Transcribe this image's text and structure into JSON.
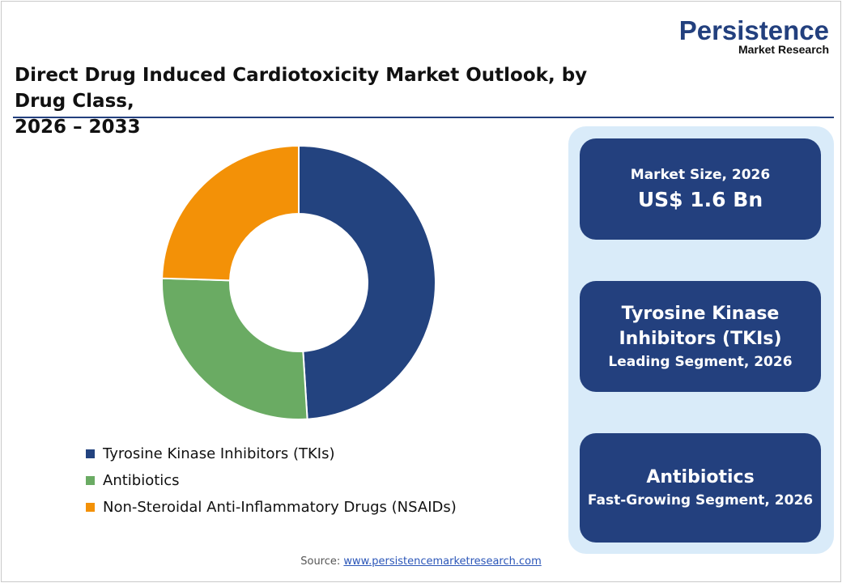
{
  "logo": {
    "main": "Persistence",
    "sub": "Market Research"
  },
  "title_line1": "Direct Drug Induced Cardiotoxicity Market Outlook, by Drug Class,",
  "title_line2": "2026 – 2033",
  "chart_data": {
    "type": "pie",
    "donut": true,
    "categories": [
      "Tyrosine Kinase Inhibitors (TKIs)",
      "Antibiotics",
      "Non-Steroidal Anti-Inflammatory Drugs (NSAIDs)"
    ],
    "values": [
      49,
      26.5,
      24.5
    ],
    "unit": "%",
    "colors": [
      "#23437f",
      "#6aab63",
      "#f39107"
    ],
    "legend": "bottom-left"
  },
  "cards": [
    {
      "line1": "Market Size, 2026",
      "line2": "US$ 1.6 Bn"
    },
    {
      "line1": "Tyrosine Kinase",
      "line2": "Inhibitors (TKIs)",
      "line3": "Leading Segment, 2026"
    },
    {
      "line1": "Antibiotics",
      "line2": "Fast-Growing Segment, 2026"
    }
  ],
  "source": {
    "label": "Source:",
    "link": "www.persistencemarketresearch.com"
  }
}
